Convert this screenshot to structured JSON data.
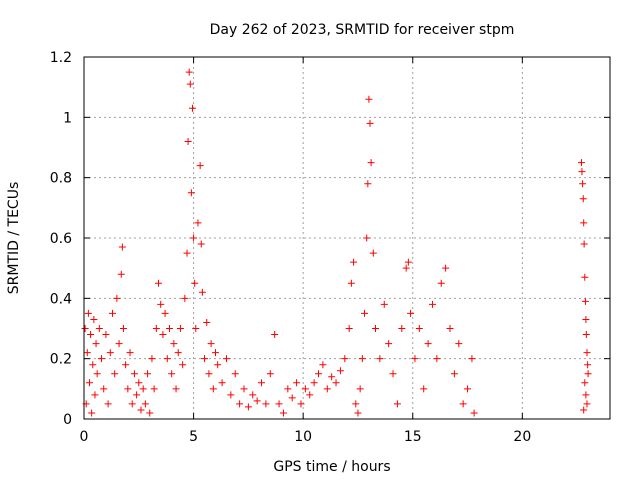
{
  "chart_data": {
    "type": "scatter",
    "title": "Day 262 of 2023, SRMTID for receiver stpm",
    "xlabel": "GPS time / hours",
    "ylabel": "SRMTID / TECUs",
    "xlim": [
      0,
      24
    ],
    "ylim": [
      0,
      1.2
    ],
    "xticks": [
      0,
      5,
      10,
      15,
      20
    ],
    "yticks": [
      0,
      0.2,
      0.4,
      0.6,
      0.8,
      1,
      1.2
    ],
    "xtick_labels": [
      "0",
      "5",
      "10",
      "15",
      "20"
    ],
    "ytick_labels": [
      "0",
      "0.2",
      "0.4",
      "0.6",
      "0.8",
      "1",
      "1.2"
    ],
    "grid": true,
    "marker": "+",
    "color": "#ff0000",
    "series": [
      {
        "name": "SRMTID",
        "points": [
          [
            0.05,
            0.3
          ],
          [
            0.1,
            0.05
          ],
          [
            0.15,
            0.22
          ],
          [
            0.2,
            0.35
          ],
          [
            0.25,
            0.12
          ],
          [
            0.3,
            0.28
          ],
          [
            0.35,
            0.02
          ],
          [
            0.4,
            0.18
          ],
          [
            0.45,
            0.33
          ],
          [
            0.5,
            0.08
          ],
          [
            0.55,
            0.25
          ],
          [
            0.6,
            0.15
          ],
          [
            0.7,
            0.3
          ],
          [
            0.8,
            0.2
          ],
          [
            0.9,
            0.1
          ],
          [
            1.0,
            0.28
          ],
          [
            1.1,
            0.05
          ],
          [
            1.2,
            0.22
          ],
          [
            1.3,
            0.35
          ],
          [
            1.4,
            0.15
          ],
          [
            1.5,
            0.4
          ],
          [
            1.6,
            0.25
          ],
          [
            1.7,
            0.48
          ],
          [
            1.75,
            0.57
          ],
          [
            1.8,
            0.3
          ],
          [
            1.9,
            0.18
          ],
          [
            2.0,
            0.1
          ],
          [
            2.1,
            0.22
          ],
          [
            2.2,
            0.05
          ],
          [
            2.3,
            0.15
          ],
          [
            2.4,
            0.08
          ],
          [
            2.5,
            0.12
          ],
          [
            2.6,
            0.03
          ],
          [
            2.7,
            0.1
          ],
          [
            2.8,
            0.05
          ],
          [
            2.9,
            0.15
          ],
          [
            3.0,
            0.02
          ],
          [
            3.1,
            0.2
          ],
          [
            3.2,
            0.1
          ],
          [
            3.3,
            0.3
          ],
          [
            3.4,
            0.45
          ],
          [
            3.5,
            0.38
          ],
          [
            3.6,
            0.28
          ],
          [
            3.7,
            0.35
          ],
          [
            3.8,
            0.2
          ],
          [
            3.9,
            0.3
          ],
          [
            4.0,
            0.15
          ],
          [
            4.1,
            0.25
          ],
          [
            4.2,
            0.1
          ],
          [
            4.3,
            0.22
          ],
          [
            4.4,
            0.3
          ],
          [
            4.5,
            0.18
          ],
          [
            4.6,
            0.4
          ],
          [
            4.7,
            0.55
          ],
          [
            4.75,
            0.92
          ],
          [
            4.8,
            1.15
          ],
          [
            4.85,
            1.11
          ],
          [
            4.9,
            0.75
          ],
          [
            4.95,
            1.03
          ],
          [
            5.0,
            0.6
          ],
          [
            5.05,
            0.45
          ],
          [
            5.1,
            0.3
          ],
          [
            5.2,
            0.65
          ],
          [
            5.3,
            0.84
          ],
          [
            5.35,
            0.58
          ],
          [
            5.4,
            0.42
          ],
          [
            5.5,
            0.2
          ],
          [
            5.6,
            0.32
          ],
          [
            5.7,
            0.15
          ],
          [
            5.8,
            0.25
          ],
          [
            5.9,
            0.1
          ],
          [
            6.0,
            0.22
          ],
          [
            6.1,
            0.18
          ],
          [
            6.3,
            0.12
          ],
          [
            6.5,
            0.2
          ],
          [
            6.7,
            0.08
          ],
          [
            6.9,
            0.15
          ],
          [
            7.1,
            0.05
          ],
          [
            7.3,
            0.1
          ],
          [
            7.5,
            0.04
          ],
          [
            7.7,
            0.08
          ],
          [
            7.9,
            0.06
          ],
          [
            8.1,
            0.12
          ],
          [
            8.3,
            0.05
          ],
          [
            8.5,
            0.15
          ],
          [
            8.7,
            0.28
          ],
          [
            8.9,
            0.05
          ],
          [
            9.1,
            0.02
          ],
          [
            9.3,
            0.1
          ],
          [
            9.5,
            0.07
          ],
          [
            9.7,
            0.12
          ],
          [
            9.9,
            0.05
          ],
          [
            10.1,
            0.1
          ],
          [
            10.3,
            0.08
          ],
          [
            10.5,
            0.12
          ],
          [
            10.7,
            0.15
          ],
          [
            10.9,
            0.18
          ],
          [
            11.1,
            0.1
          ],
          [
            11.3,
            0.14
          ],
          [
            11.5,
            0.12
          ],
          [
            11.7,
            0.16
          ],
          [
            11.9,
            0.2
          ],
          [
            12.1,
            0.3
          ],
          [
            12.2,
            0.45
          ],
          [
            12.3,
            0.52
          ],
          [
            12.4,
            0.05
          ],
          [
            12.5,
            0.02
          ],
          [
            12.6,
            0.1
          ],
          [
            12.7,
            0.2
          ],
          [
            12.8,
            0.35
          ],
          [
            12.9,
            0.6
          ],
          [
            12.95,
            0.78
          ],
          [
            13.0,
            1.06
          ],
          [
            13.05,
            0.98
          ],
          [
            13.1,
            0.85
          ],
          [
            13.2,
            0.55
          ],
          [
            13.3,
            0.3
          ],
          [
            13.5,
            0.2
          ],
          [
            13.7,
            0.38
          ],
          [
            13.9,
            0.25
          ],
          [
            14.1,
            0.15
          ],
          [
            14.3,
            0.05
          ],
          [
            14.5,
            0.3
          ],
          [
            14.7,
            0.5
          ],
          [
            14.8,
            0.52
          ],
          [
            14.9,
            0.35
          ],
          [
            15.1,
            0.2
          ],
          [
            15.3,
            0.3
          ],
          [
            15.5,
            0.1
          ],
          [
            15.7,
            0.25
          ],
          [
            15.9,
            0.38
          ],
          [
            16.1,
            0.2
          ],
          [
            16.3,
            0.45
          ],
          [
            16.5,
            0.5
          ],
          [
            16.7,
            0.3
          ],
          [
            16.9,
            0.15
          ],
          [
            17.1,
            0.25
          ],
          [
            17.3,
            0.05
          ],
          [
            17.5,
            0.1
          ],
          [
            17.7,
            0.2
          ],
          [
            17.8,
            0.02
          ],
          [
            22.7,
            0.85
          ],
          [
            22.72,
            0.82
          ],
          [
            22.75,
            0.78
          ],
          [
            22.78,
            0.73
          ],
          [
            22.8,
            0.65
          ],
          [
            22.82,
            0.58
          ],
          [
            22.85,
            0.47
          ],
          [
            22.88,
            0.39
          ],
          [
            22.9,
            0.33
          ],
          [
            22.92,
            0.28
          ],
          [
            22.95,
            0.22
          ],
          [
            22.98,
            0.18
          ],
          [
            23.0,
            0.15
          ],
          [
            22.85,
            0.12
          ],
          [
            22.9,
            0.08
          ],
          [
            22.95,
            0.05
          ],
          [
            22.8,
            0.03
          ]
        ]
      }
    ]
  }
}
